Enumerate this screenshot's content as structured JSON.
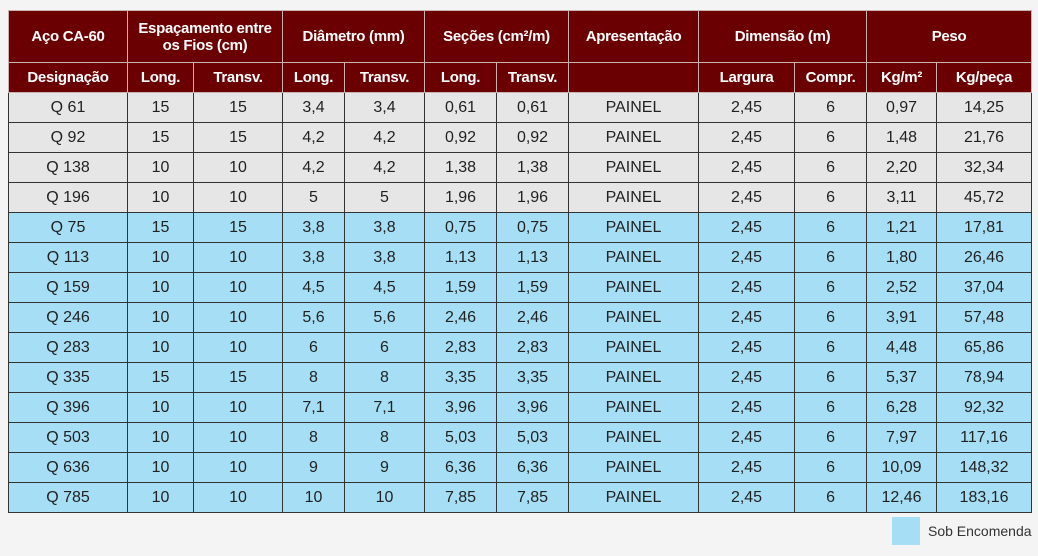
{
  "header": {
    "row1": [
      "Aço CA-60",
      "Espaçamento entre os Fios (cm)",
      "Diâmetro (mm)",
      "Seções (cm²/m)",
      "Apresentação",
      "Dimensão (m)",
      "Peso"
    ],
    "row2": [
      "Designação",
      "Long.",
      "Transv.",
      "Long.",
      "Transv.",
      "Long.",
      "Transv.",
      "",
      "Largura",
      "Compr.",
      "Kg/m²",
      "Kg/peça"
    ]
  },
  "rows": [
    {
      "type": "grey",
      "cells": [
        "Q 61",
        "15",
        "15",
        "3,4",
        "3,4",
        "0,61",
        "0,61",
        "PAINEL",
        "2,45",
        "6",
        "0,97",
        "14,25"
      ]
    },
    {
      "type": "grey",
      "cells": [
        "Q 92",
        "15",
        "15",
        "4,2",
        "4,2",
        "0,92",
        "0,92",
        "PAINEL",
        "2,45",
        "6",
        "1,48",
        "21,76"
      ]
    },
    {
      "type": "grey",
      "cells": [
        "Q 138",
        "10",
        "10",
        "4,2",
        "4,2",
        "1,38",
        "1,38",
        "PAINEL",
        "2,45",
        "6",
        "2,20",
        "32,34"
      ]
    },
    {
      "type": "grey",
      "cells": [
        "Q 196",
        "10",
        "10",
        "5",
        "5",
        "1,96",
        "1,96",
        "PAINEL",
        "2,45",
        "6",
        "3,11",
        "45,72"
      ]
    },
    {
      "type": "blue",
      "cells": [
        "Q 75",
        "15",
        "15",
        "3,8",
        "3,8",
        "0,75",
        "0,75",
        "PAINEL",
        "2,45",
        "6",
        "1,21",
        "17,81"
      ]
    },
    {
      "type": "blue",
      "cells": [
        "Q 113",
        "10",
        "10",
        "3,8",
        "3,8",
        "1,13",
        "1,13",
        "PAINEL",
        "2,45",
        "6",
        "1,80",
        "26,46"
      ]
    },
    {
      "type": "blue",
      "cells": [
        "Q 159",
        "10",
        "10",
        "4,5",
        "4,5",
        "1,59",
        "1,59",
        "PAINEL",
        "2,45",
        "6",
        "2,52",
        "37,04"
      ]
    },
    {
      "type": "blue",
      "cells": [
        "Q 246",
        "10",
        "10",
        "5,6",
        "5,6",
        "2,46",
        "2,46",
        "PAINEL",
        "2,45",
        "6",
        "3,91",
        "57,48"
      ]
    },
    {
      "type": "blue",
      "cells": [
        "Q 283",
        "10",
        "10",
        "6",
        "6",
        "2,83",
        "2,83",
        "PAINEL",
        "2,45",
        "6",
        "4,48",
        "65,86"
      ]
    },
    {
      "type": "blue",
      "cells": [
        "Q 335",
        "15",
        "15",
        "8",
        "8",
        "3,35",
        "3,35",
        "PAINEL",
        "2,45",
        "6",
        "5,37",
        "78,94"
      ]
    },
    {
      "type": "blue",
      "cells": [
        "Q 396",
        "10",
        "10",
        "7,1",
        "7,1",
        "3,96",
        "3,96",
        "PAINEL",
        "2,45",
        "6",
        "6,28",
        "92,32"
      ]
    },
    {
      "type": "blue",
      "cells": [
        "Q 503",
        "10",
        "10",
        "8",
        "8",
        "5,03",
        "5,03",
        "PAINEL",
        "2,45",
        "6",
        "7,97",
        "117,16"
      ]
    },
    {
      "type": "blue",
      "cells": [
        "Q 636",
        "10",
        "10",
        "9",
        "9",
        "6,36",
        "6,36",
        "PAINEL",
        "2,45",
        "6",
        "10,09",
        "148,32"
      ]
    },
    {
      "type": "blue",
      "cells": [
        "Q 785",
        "10",
        "10",
        "10",
        "10",
        "7,85",
        "7,85",
        "PAINEL",
        "2,45",
        "6",
        "12,46",
        "183,16"
      ]
    }
  ],
  "legend": {
    "label": "Sob Encomenda",
    "color": "#a6dff5"
  },
  "colors": {
    "header": "#6a0002",
    "standard_row": "#e6e6e6",
    "order_row": "#a6dff5"
  }
}
